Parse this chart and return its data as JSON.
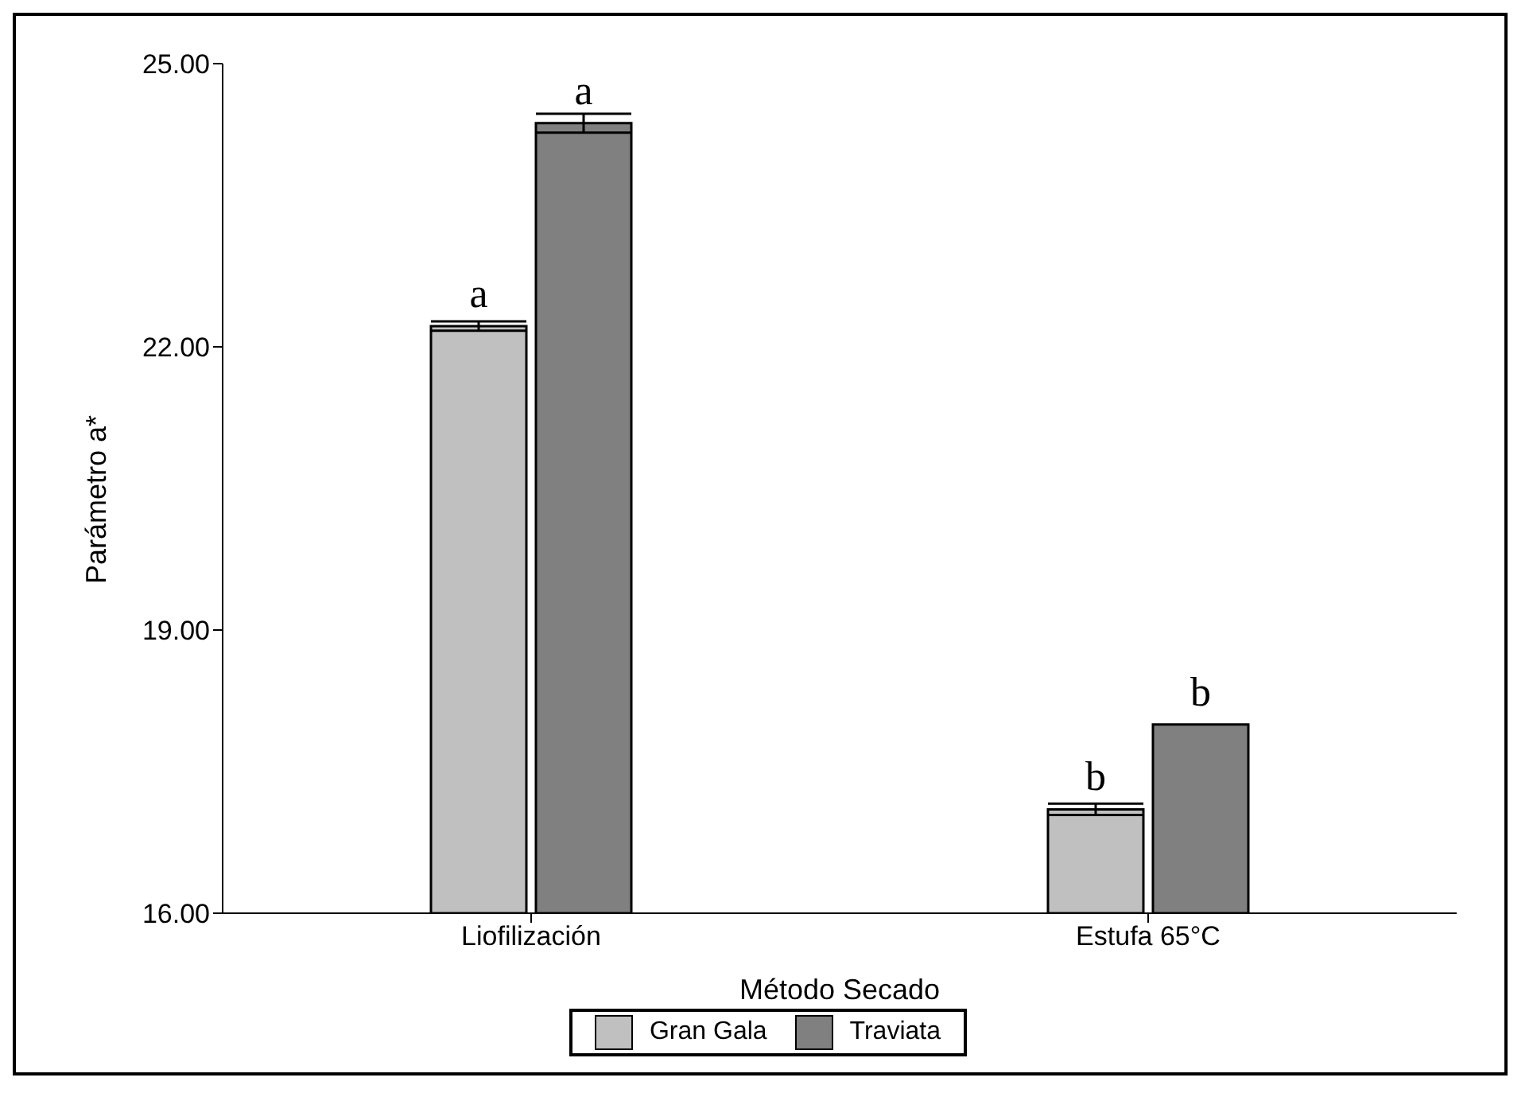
{
  "chart_data": {
    "type": "bar",
    "xlabel": "Método Secado",
    "ylabel": "Parámetro a*",
    "categories": [
      "Liofilización",
      "Estufa 65°C"
    ],
    "series": [
      {
        "name": "Gran Gala",
        "color": "#c0c0c0",
        "values": [
          22.22,
          17.1
        ],
        "errors": [
          0.05,
          0.06
        ]
      },
      {
        "name": "Traviata",
        "color": "#808080",
        "values": [
          24.37,
          18.0
        ],
        "errors": [
          0.1,
          null
        ]
      }
    ],
    "ylim": [
      16,
      25
    ],
    "yticks": [
      {
        "value": 16,
        "label": "16.00"
      },
      {
        "value": 19,
        "label": "19.00"
      },
      {
        "value": 22,
        "label": "22.00"
      },
      {
        "value": 25,
        "label": "25.00"
      }
    ],
    "grid": false,
    "legend": "bottom",
    "annotations": [
      "a",
      "a",
      "b",
      "b"
    ]
  }
}
